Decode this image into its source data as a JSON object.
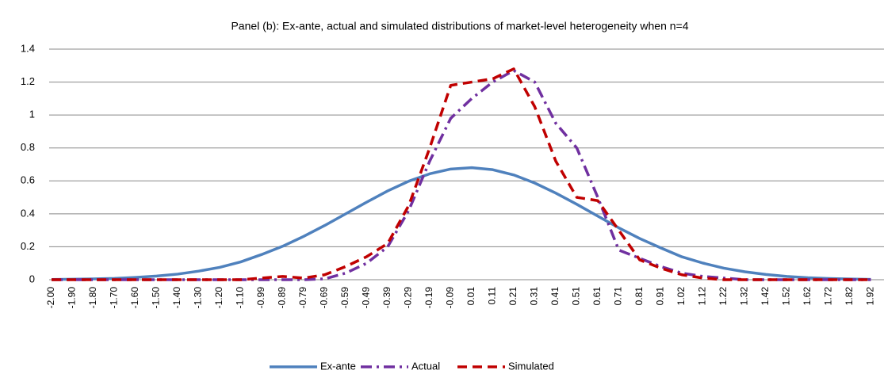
{
  "chart_data": {
    "type": "line",
    "title": "Panel (b): Ex-ante, actual and simulated distributions of market-level heterogeneity when n=4",
    "categories": [
      "-2.00",
      "-1.90",
      "-1.80",
      "-1.70",
      "-1.60",
      "-1.50",
      "-1.40",
      "-1.30",
      "-1.20",
      "-1.10",
      "-0.99",
      "-0.89",
      "-0.79",
      "-0.69",
      "-0.59",
      "-0.49",
      "-0.39",
      "-0.29",
      "-0.19",
      "-0.09",
      "0.01",
      "0.11",
      "0.21",
      "0.31",
      "0.41",
      "0.51",
      "0.61",
      "0.71",
      "0.81",
      "0.91",
      "1.02",
      "1.12",
      "1.22",
      "1.32",
      "1.42",
      "1.52",
      "1.62",
      "1.72",
      "1.82",
      "1.92"
    ],
    "series": [
      {
        "name": "Ex-ante",
        "color": "#4f81bd",
        "line_style": "solid",
        "values": [
          0.0015,
          0.003,
          0.005,
          0.008,
          0.014,
          0.022,
          0.034,
          0.052,
          0.075,
          0.108,
          0.153,
          0.203,
          0.263,
          0.329,
          0.4,
          0.471,
          0.539,
          0.598,
          0.643,
          0.672,
          0.68,
          0.668,
          0.636,
          0.587,
          0.526,
          0.458,
          0.386,
          0.315,
          0.25,
          0.193,
          0.139,
          0.101,
          0.07,
          0.048,
          0.032,
          0.02,
          0.012,
          0.007,
          0.004,
          0.002
        ]
      },
      {
        "name": "Actual",
        "color": "#7030a0",
        "line_style": "dashdot",
        "values": [
          0,
          0,
          0,
          0,
          0,
          0,
          0,
          0,
          0,
          0,
          0,
          0,
          0,
          0.005,
          0.04,
          0.1,
          0.2,
          0.42,
          0.72,
          0.98,
          1.1,
          1.2,
          1.27,
          1.2,
          0.95,
          0.8,
          0.5,
          0.18,
          0.13,
          0.08,
          0.04,
          0.02,
          0.01,
          0,
          0,
          0,
          0,
          0,
          0,
          0
        ]
      },
      {
        "name": "Simulated",
        "color": "#c00000",
        "line_style": "dash",
        "values": [
          0,
          0,
          0,
          0,
          0,
          0,
          0,
          0,
          0,
          0,
          0.01,
          0.02,
          0.01,
          0.03,
          0.08,
          0.14,
          0.22,
          0.45,
          0.8,
          1.18,
          1.2,
          1.22,
          1.28,
          1.05,
          0.72,
          0.5,
          0.48,
          0.3,
          0.12,
          0.07,
          0.03,
          0.01,
          0,
          0,
          0,
          0,
          0,
          0,
          0,
          0
        ]
      }
    ],
    "ylim": [
      0,
      1.4
    ],
    "yticks": [
      0,
      0.2,
      0.4,
      0.6,
      0.8,
      1,
      1.2,
      1.4
    ],
    "grid": true,
    "legend": "bottom"
  }
}
